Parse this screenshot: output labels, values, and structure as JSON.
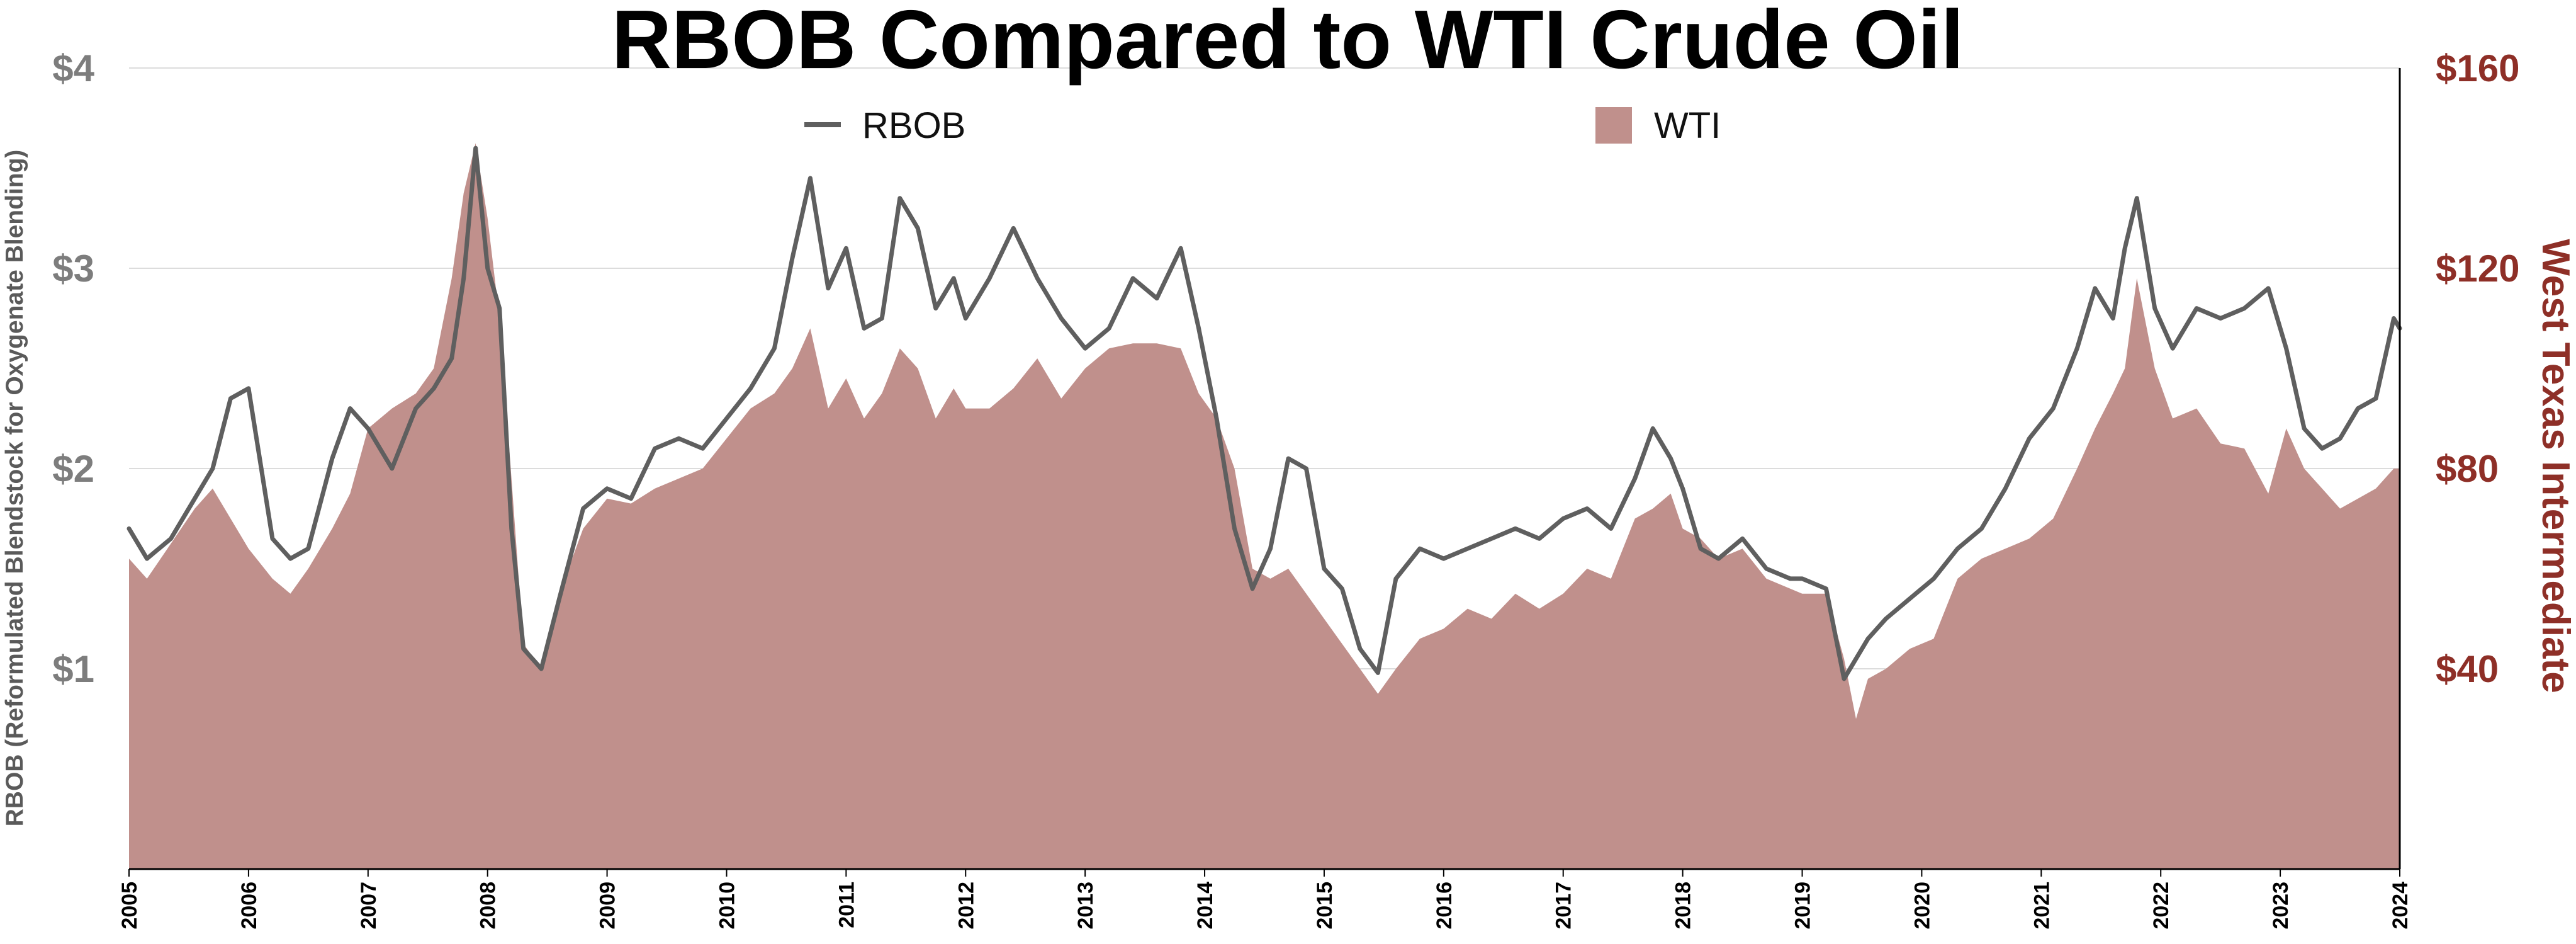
{
  "chart_data": {
    "type": "area",
    "title": "RBOB Compared to WTI Crude Oil",
    "ylabel": "RBOB (Reformulated Blendstock for Oxygenate Blending)",
    "y2label": "West Texas Intermediate",
    "xlim": [
      2005,
      2024
    ],
    "ylim": [
      0,
      4
    ],
    "y2lim": [
      0,
      160
    ],
    "yticks": [
      "$1",
      "$2",
      "$3",
      "$4"
    ],
    "y2ticks": [
      "$40",
      "$80",
      "$120",
      "$160"
    ],
    "xticks": [
      "2005",
      "2006",
      "2007",
      "2008",
      "2009",
      "2010",
      "2011",
      "2012",
      "2013",
      "2014",
      "2015",
      "2016",
      "2017",
      "2018",
      "2019",
      "2020",
      "2021",
      "2022",
      "2023",
      "2024"
    ],
    "grid": true,
    "legend": [
      "RBOB",
      "WTI"
    ],
    "legend_placement": "top-center",
    "colors": {
      "rbob": "#5f5f5f",
      "wti": "#c0908c",
      "right_axis": "#8e2f27"
    },
    "series": [
      {
        "name": "RBOB",
        "type": "line",
        "axis": "left",
        "x": [
          2005.0,
          2005.15,
          2005.35,
          2005.55,
          2005.7,
          2005.85,
          2006.0,
          2006.2,
          2006.35,
          2006.5,
          2006.7,
          2006.85,
          2007.0,
          2007.2,
          2007.4,
          2007.55,
          2007.7,
          2007.8,
          2007.9,
          2008.0,
          2008.1,
          2008.2,
          2008.3,
          2008.45,
          2008.6,
          2008.8,
          2009.0,
          2009.2,
          2009.4,
          2009.6,
          2009.8,
          2010.0,
          2010.2,
          2010.4,
          2010.55,
          2010.7,
          2010.85,
          2011.0,
          2011.15,
          2011.3,
          2011.45,
          2011.6,
          2011.75,
          2011.9,
          2012.0,
          2012.2,
          2012.4,
          2012.6,
          2012.8,
          2013.0,
          2013.2,
          2013.4,
          2013.6,
          2013.8,
          2013.95,
          2014.1,
          2014.25,
          2014.4,
          2014.55,
          2014.7,
          2014.85,
          2015.0,
          2015.15,
          2015.3,
          2015.45,
          2015.6,
          2015.8,
          2016.0,
          2016.2,
          2016.4,
          2016.6,
          2016.8,
          2017.0,
          2017.2,
          2017.4,
          2017.6,
          2017.75,
          2017.9,
          2018.0,
          2018.15,
          2018.3,
          2018.5,
          2018.7,
          2018.9,
          2019.0,
          2019.2,
          2019.35,
          2019.45,
          2019.55,
          2019.7,
          2019.9,
          2020.1,
          2020.3,
          2020.5,
          2020.7,
          2020.9,
          2021.1,
          2021.3,
          2021.45,
          2021.6,
          2021.7,
          2021.8,
          2021.95,
          2022.1,
          2022.3,
          2022.5,
          2022.7,
          2022.9,
          2023.05,
          2023.2,
          2023.35,
          2023.5,
          2023.65,
          2023.8,
          2023.95,
          2024.0
        ],
        "values": [
          1.7,
          1.55,
          1.65,
          1.85,
          2.0,
          2.35,
          2.4,
          1.65,
          1.55,
          1.6,
          2.05,
          2.3,
          2.2,
          2.0,
          2.3,
          2.4,
          2.55,
          2.95,
          3.6,
          3.0,
          2.8,
          1.7,
          1.1,
          1.0,
          1.35,
          1.8,
          1.9,
          1.85,
          2.1,
          2.15,
          2.1,
          2.25,
          2.4,
          2.6,
          3.05,
          3.45,
          2.9,
          3.1,
          2.7,
          2.75,
          3.35,
          3.2,
          2.8,
          2.95,
          2.75,
          2.95,
          3.2,
          2.95,
          2.75,
          2.6,
          2.7,
          2.95,
          2.85,
          3.1,
          2.7,
          2.25,
          1.7,
          1.4,
          1.6,
          2.05,
          2.0,
          1.5,
          1.4,
          1.1,
          0.98,
          1.45,
          1.6,
          1.55,
          1.6,
          1.65,
          1.7,
          1.65,
          1.75,
          1.8,
          1.7,
          1.95,
          2.2,
          2.05,
          1.9,
          1.6,
          1.55,
          1.65,
          1.5,
          1.45,
          1.45,
          1.4,
          0.95,
          1.05,
          1.15,
          1.25,
          1.35,
          1.45,
          1.6,
          1.7,
          1.9,
          2.15,
          2.3,
          2.6,
          2.9,
          2.75,
          3.1,
          3.35,
          2.8,
          2.6,
          2.8,
          2.75,
          2.8,
          2.9,
          2.6,
          2.2,
          2.1,
          2.15,
          2.3,
          2.35,
          2.75,
          2.7
        ]
      },
      {
        "name": "WTI",
        "type": "area",
        "axis": "right",
        "x": [
          2005.0,
          2005.15,
          2005.35,
          2005.55,
          2005.7,
          2005.85,
          2006.0,
          2006.2,
          2006.35,
          2006.5,
          2006.7,
          2006.85,
          2007.0,
          2007.2,
          2007.4,
          2007.55,
          2007.7,
          2007.8,
          2007.9,
          2008.0,
          2008.1,
          2008.2,
          2008.3,
          2008.45,
          2008.6,
          2008.8,
          2009.0,
          2009.2,
          2009.4,
          2009.6,
          2009.8,
          2010.0,
          2010.2,
          2010.4,
          2010.55,
          2010.7,
          2010.85,
          2011.0,
          2011.15,
          2011.3,
          2011.45,
          2011.6,
          2011.75,
          2011.9,
          2012.0,
          2012.2,
          2012.4,
          2012.6,
          2012.8,
          2013.0,
          2013.2,
          2013.4,
          2013.6,
          2013.8,
          2013.95,
          2014.1,
          2014.25,
          2014.4,
          2014.55,
          2014.7,
          2014.85,
          2015.0,
          2015.15,
          2015.3,
          2015.45,
          2015.6,
          2015.8,
          2016.0,
          2016.2,
          2016.4,
          2016.6,
          2016.8,
          2017.0,
          2017.2,
          2017.4,
          2017.6,
          2017.75,
          2017.9,
          2018.0,
          2018.15,
          2018.3,
          2018.5,
          2018.7,
          2018.9,
          2019.0,
          2019.2,
          2019.35,
          2019.45,
          2019.55,
          2019.7,
          2019.9,
          2020.1,
          2020.3,
          2020.5,
          2020.7,
          2020.9,
          2021.1,
          2021.3,
          2021.45,
          2021.6,
          2021.7,
          2021.8,
          2021.95,
          2022.1,
          2022.3,
          2022.5,
          2022.7,
          2022.9,
          2023.05,
          2023.2,
          2023.35,
          2023.5,
          2023.65,
          2023.8,
          2023.95,
          2024.0
        ],
        "values": [
          62,
          58,
          65,
          72,
          76,
          70,
          64,
          58,
          55,
          60,
          68,
          75,
          88,
          92,
          95,
          100,
          118,
          135,
          145,
          130,
          110,
          78,
          45,
          40,
          55,
          68,
          74,
          73,
          76,
          78,
          80,
          86,
          92,
          95,
          100,
          108,
          92,
          98,
          90,
          95,
          104,
          100,
          90,
          96,
          92,
          92,
          96,
          102,
          94,
          100,
          104,
          105,
          105,
          104,
          95,
          90,
          80,
          60,
          58,
          60,
          55,
          50,
          45,
          40,
          35,
          40,
          46,
          48,
          52,
          50,
          55,
          52,
          55,
          60,
          58,
          70,
          72,
          75,
          68,
          66,
          62,
          64,
          58,
          56,
          55,
          55,
          42,
          30,
          38,
          40,
          44,
          46,
          58,
          62,
          64,
          66,
          70,
          80,
          88,
          95,
          100,
          118,
          100,
          90,
          92,
          85,
          84,
          75,
          88,
          80,
          76,
          72,
          74,
          76,
          80,
          80
        ]
      }
    ]
  }
}
